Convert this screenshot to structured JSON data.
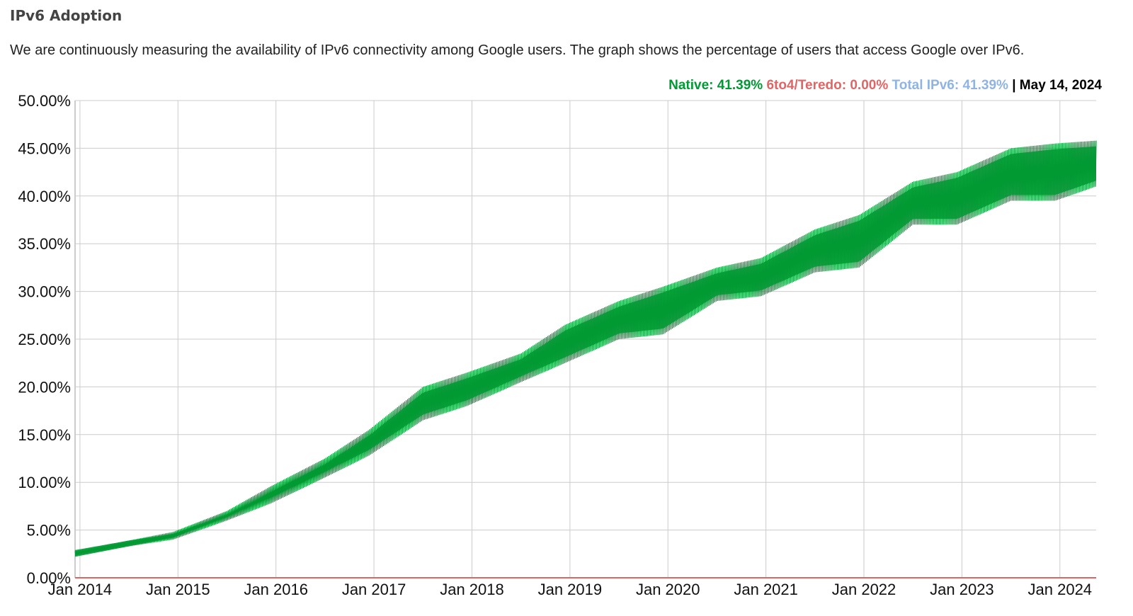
{
  "page": {
    "title": "IPv6 Adoption",
    "description": "We are continuously measuring the availability of IPv6 connectivity among Google users. The graph shows the percentage of users that access Google over IPv6."
  },
  "legend": {
    "native": "Native: 41.39%",
    "teredo": "6to4/Teredo: 0.00%",
    "total": "Total IPv6: 41.39%",
    "separator": "|",
    "date": "May 14, 2024"
  },
  "chart_data": {
    "type": "area",
    "title": "IPv6 Adoption",
    "xlabel": "",
    "ylabel": "",
    "ylim": [
      0,
      50
    ],
    "xlim": [
      2013.95,
      2024.37
    ],
    "grid": true,
    "y_ticks": [
      "0.00%",
      "5.00%",
      "10.00%",
      "15.00%",
      "20.00%",
      "25.00%",
      "30.00%",
      "35.00%",
      "40.00%",
      "45.00%",
      "50.00%"
    ],
    "x_ticks": [
      {
        "label": "Jan 2014",
        "value": 2014
      },
      {
        "label": "Jan 2015",
        "value": 2015
      },
      {
        "label": "Jan 2016",
        "value": 2016
      },
      {
        "label": "Jan 2017",
        "value": 2017
      },
      {
        "label": "Jan 2018",
        "value": 2018
      },
      {
        "label": "Jan 2019",
        "value": 2019
      },
      {
        "label": "Jan 2020",
        "value": 2020
      },
      {
        "label": "Jan 2021",
        "value": 2021
      },
      {
        "label": "Jan 2022",
        "value": 2022
      },
      {
        "label": "Jan 2023",
        "value": 2023
      },
      {
        "label": "Jan 2024",
        "value": 2024
      }
    ],
    "series": [
      {
        "name": "Native",
        "color": "#009933",
        "x": [
          2013.95,
          2014.5,
          2014.95,
          2015.5,
          2015.95,
          2016.5,
          2016.95,
          2017.5,
          2017.95,
          2018.5,
          2018.95,
          2019.5,
          2019.95,
          2020.5,
          2020.95,
          2021.5,
          2021.95,
          2022.5,
          2022.95,
          2023.5,
          2023.95,
          2024.37
        ],
        "low": [
          2.3,
          3.3,
          4.0,
          6.0,
          7.8,
          10.5,
          12.8,
          16.5,
          18.0,
          20.5,
          22.5,
          25.0,
          25.5,
          29.0,
          29.5,
          32.0,
          32.5,
          37.0,
          37.0,
          39.5,
          39.5,
          41.0
        ],
        "high": [
          2.8,
          3.9,
          4.8,
          7.0,
          9.6,
          12.5,
          15.5,
          20.0,
          21.5,
          23.5,
          26.5,
          29.0,
          30.5,
          32.5,
          33.5,
          36.5,
          38.0,
          41.5,
          42.5,
          45.0,
          45.5,
          45.8
        ]
      },
      {
        "name": "6to4/Teredo",
        "color": "#e06666",
        "x": [
          2013.95,
          2024.37
        ],
        "values": [
          0.0,
          0.0
        ]
      }
    ]
  }
}
